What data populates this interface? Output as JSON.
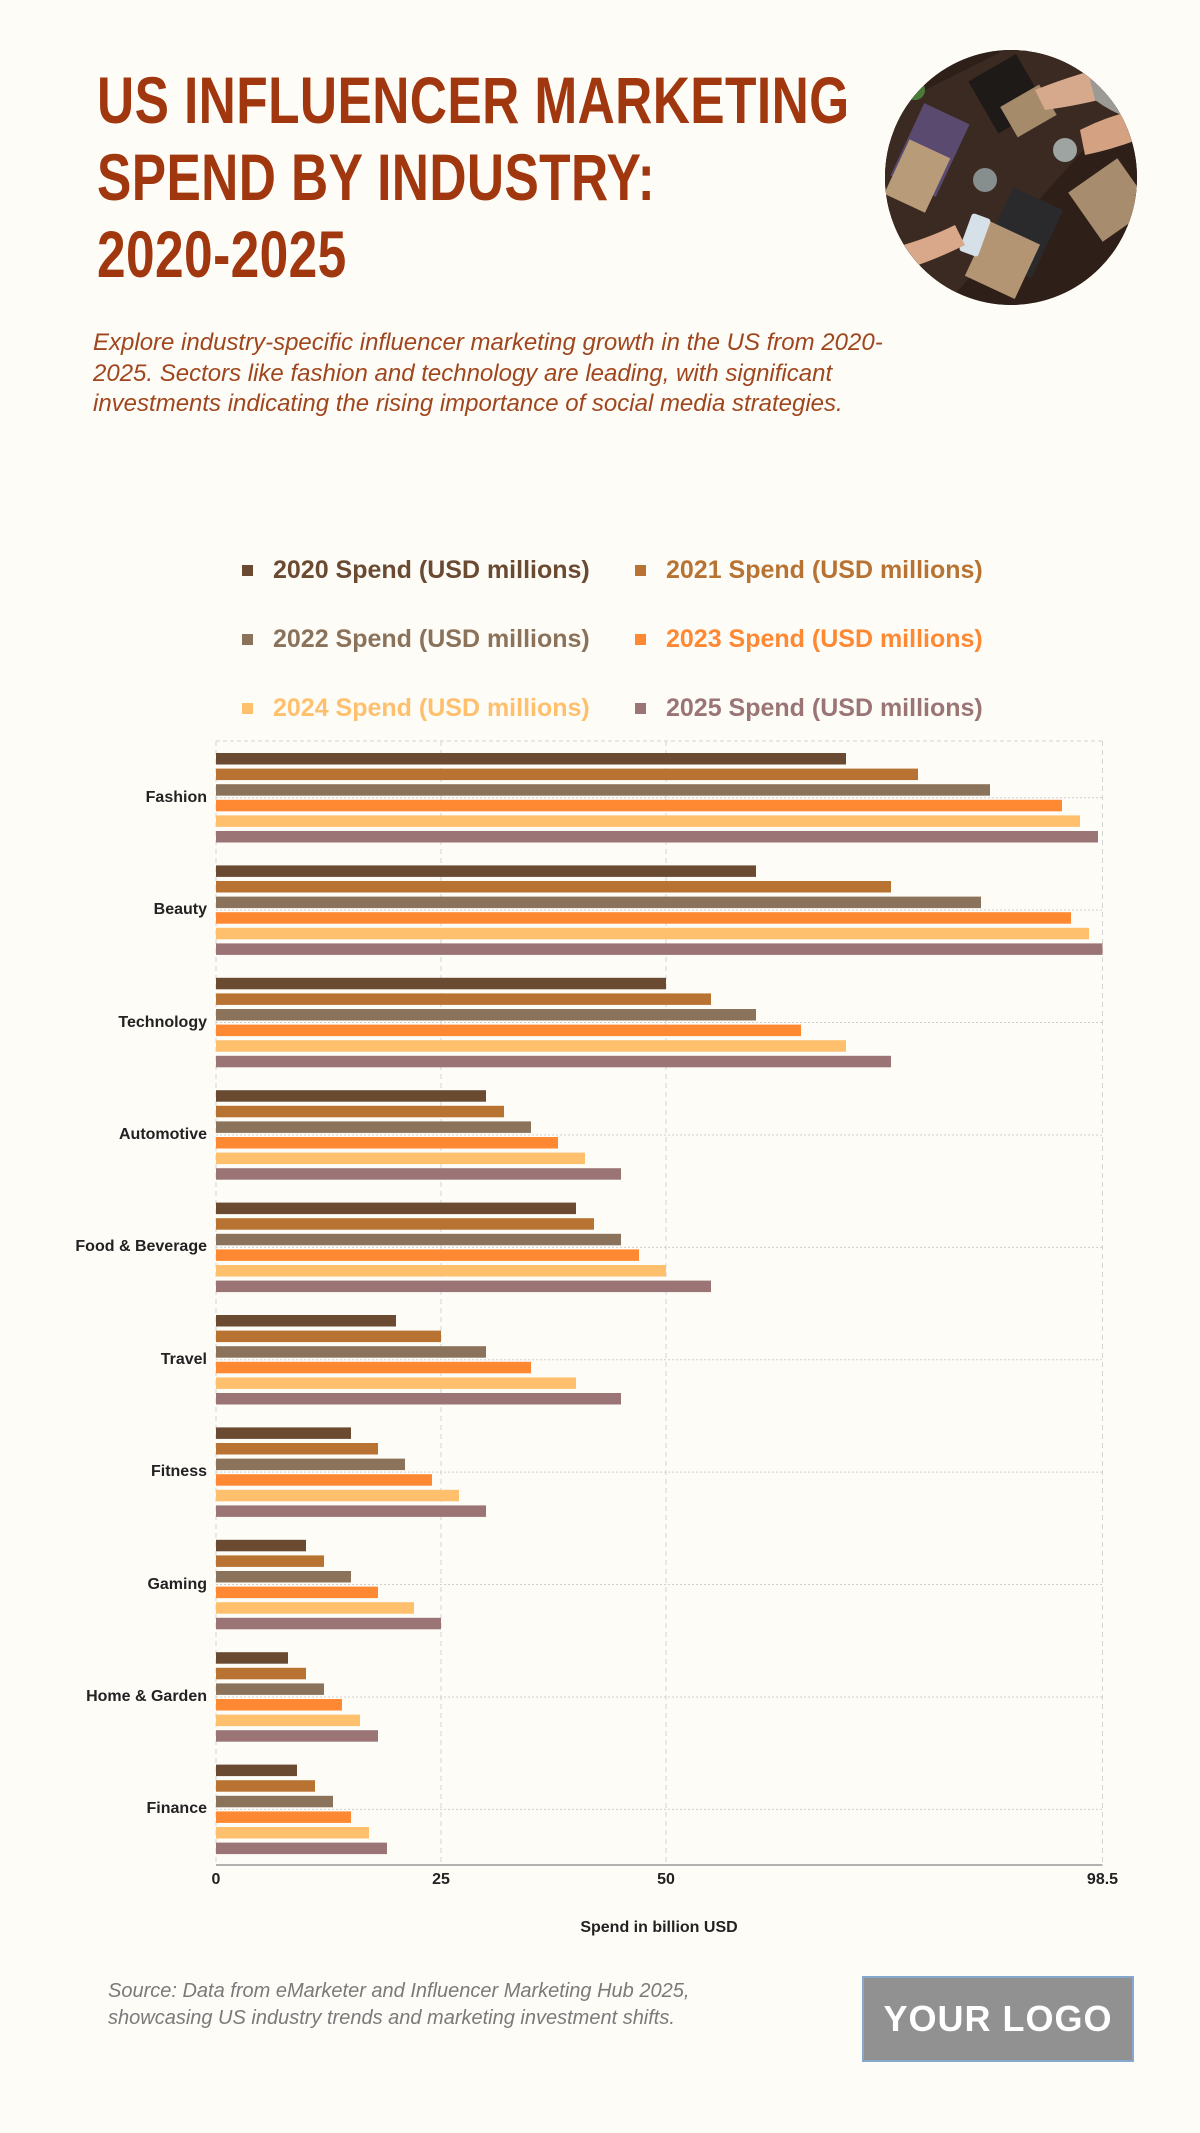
{
  "header": {
    "title_lines": [
      "US INFLUENCER MARKETING",
      "SPEND BY INDUSTRY:",
      "2020-2025"
    ],
    "subtitle": "Explore industry-specific influencer marketing growth in the US from 2020-2025. Sectors like fashion and technology are leading, with significant investments indicating the rising importance of social media strategies.",
    "photo_alt": "people working on laptops at a shared table"
  },
  "colors": {
    "title": "#A0370F",
    "subtitle": "#A0461E",
    "background": "#FDFCF7"
  },
  "chart_data": {
    "type": "bar",
    "orientation": "horizontal",
    "title": "US Influencer Marketing Spend by Industry: 2020-2025",
    "xlabel": "Spend in billion USD",
    "ylabel": "",
    "xlim": [
      0,
      98.5
    ],
    "xticks": [
      0,
      25,
      50,
      98.5
    ],
    "xtick_labels": [
      "0",
      "25",
      "50",
      "98.5"
    ],
    "grid": true,
    "legend_position": "top",
    "categories": [
      "Fashion",
      "Beauty",
      "Technology",
      "Automotive",
      "Food & Beverage",
      "Travel",
      "Fitness",
      "Gaming",
      "Home & Garden",
      "Finance"
    ],
    "series": [
      {
        "name": "2020 Spend (USD millions)",
        "color": "#6B4A32",
        "values": [
          70,
          60,
          50,
          30,
          40,
          20,
          15,
          10,
          8,
          9
        ]
      },
      {
        "name": "2021 Spend (USD millions)",
        "color": "#B87333",
        "values": [
          78,
          75,
          55,
          32,
          42,
          25,
          18,
          12,
          10,
          11
        ]
      },
      {
        "name": "2022 Spend (USD millions)",
        "color": "#8B735B",
        "values": [
          86,
          85,
          60,
          35,
          45,
          30,
          21,
          15,
          12,
          13
        ]
      },
      {
        "name": "2023 Spend (USD millions)",
        "color": "#FF8833",
        "values": [
          94,
          95,
          65,
          38,
          47,
          35,
          24,
          18,
          14,
          15
        ]
      },
      {
        "name": "2024 Spend (USD millions)",
        "color": "#FFC06E",
        "values": [
          96,
          97,
          70,
          41,
          50,
          40,
          27,
          22,
          16,
          17
        ]
      },
      {
        "name": "2025 Spend (USD millions)",
        "color": "#9B7575",
        "values": [
          98,
          98.5,
          75,
          45,
          55,
          45,
          30,
          25,
          18,
          19
        ]
      }
    ]
  },
  "footer": {
    "source": "Source: Data from eMarketer and Influencer Marketing Hub 2025, showcasing US industry trends and marketing investment shifts.",
    "logo_text": "YOUR LOGO"
  }
}
